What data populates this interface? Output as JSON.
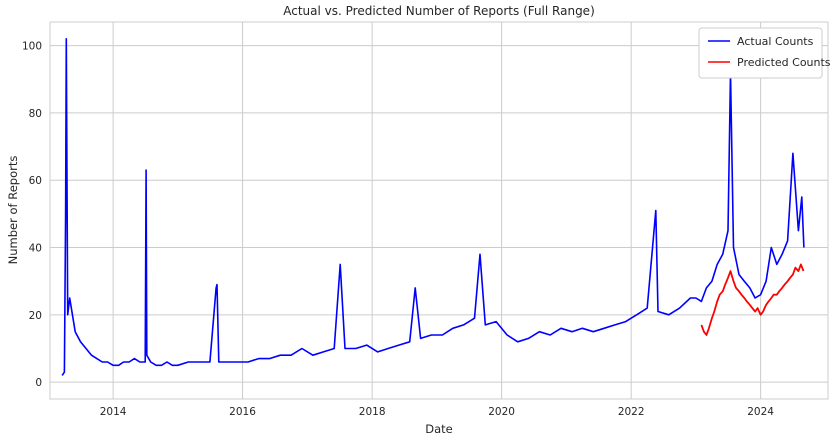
{
  "chart_data": {
    "type": "line",
    "title": "Actual vs. Predicted Number of Reports (Full Range)",
    "xlabel": "Date",
    "ylabel": "Number of Reports",
    "x_range": [
      "2013-01-10",
      "2025-01-15"
    ],
    "ylim": [
      -5,
      107
    ],
    "x_ticks": [
      {
        "label": "2014",
        "date": "2014-01-01"
      },
      {
        "label": "2016",
        "date": "2016-01-01"
      },
      {
        "label": "2018",
        "date": "2018-01-01"
      },
      {
        "label": "2020",
        "date": "2020-01-01"
      },
      {
        "label": "2022",
        "date": "2022-01-01"
      },
      {
        "label": "2024",
        "date": "2024-01-01"
      }
    ],
    "y_ticks": [
      0,
      20,
      40,
      60,
      80,
      100
    ],
    "grid": true,
    "legend_position": "top-right",
    "series": [
      {
        "name": "Actual Counts",
        "color": "#0000ff",
        "dates": [
          "2013-03-20",
          "2013-04-01",
          "2013-04-08",
          "2013-04-12",
          "2013-04-16",
          "2013-04-20",
          "2013-05-01",
          "2013-06-01",
          "2013-07-01",
          "2013-08-01",
          "2013-09-01",
          "2013-10-01",
          "2013-11-01",
          "2013-12-01",
          "2014-01-01",
          "2014-02-01",
          "2014-03-01",
          "2014-04-01",
          "2014-05-01",
          "2014-06-01",
          "2014-07-01",
          "2014-07-06",
          "2014-07-10",
          "2014-08-01",
          "2014-09-01",
          "2014-10-01",
          "2014-11-01",
          "2014-12-01",
          "2015-01-01",
          "2015-03-01",
          "2015-05-01",
          "2015-07-01",
          "2015-08-05",
          "2015-08-10",
          "2015-08-20",
          "2015-10-01",
          "2015-12-01",
          "2016-02-01",
          "2016-04-01",
          "2016-06-01",
          "2016-08-01",
          "2016-10-01",
          "2016-12-01",
          "2017-02-01",
          "2017-04-01",
          "2017-06-01",
          "2017-07-05",
          "2017-08-01",
          "2017-10-01",
          "2017-12-01",
          "2018-02-01",
          "2018-04-01",
          "2018-06-01",
          "2018-08-01",
          "2018-09-01",
          "2018-10-01",
          "2018-12-01",
          "2019-02-01",
          "2019-04-01",
          "2019-06-01",
          "2019-08-01",
          "2019-09-01",
          "2019-10-01",
          "2019-12-01",
          "2020-02-01",
          "2020-04-01",
          "2020-06-01",
          "2020-08-01",
          "2020-10-01",
          "2020-12-01",
          "2021-02-01",
          "2021-04-01",
          "2021-06-01",
          "2021-08-01",
          "2021-10-01",
          "2021-12-01",
          "2022-02-01",
          "2022-04-01",
          "2022-05-20",
          "2022-06-01",
          "2022-08-01",
          "2022-10-01",
          "2022-12-01",
          "2023-01-01",
          "2023-02-01",
          "2023-03-01",
          "2023-04-01",
          "2023-05-01",
          "2023-06-01",
          "2023-07-01",
          "2023-07-15",
          "2023-08-01",
          "2023-09-01",
          "2023-10-01",
          "2023-11-01",
          "2023-12-01",
          "2024-01-01",
          "2024-02-01",
          "2024-03-01",
          "2024-04-01",
          "2024-05-01",
          "2024-06-01",
          "2024-07-01",
          "2024-08-01",
          "2024-08-20",
          "2024-09-01"
        ],
        "values": [
          2,
          3,
          50,
          102,
          60,
          20,
          25,
          15,
          12,
          10,
          8,
          7,
          6,
          6,
          5,
          5,
          6,
          6,
          7,
          6,
          6,
          63,
          8,
          6,
          5,
          5,
          6,
          5,
          5,
          6,
          6,
          6,
          28,
          29,
          6,
          6,
          6,
          6,
          7,
          7,
          8,
          8,
          10,
          8,
          9,
          10,
          35,
          10,
          10,
          11,
          9,
          10,
          11,
          12,
          28,
          13,
          14,
          14,
          16,
          17,
          19,
          38,
          17,
          18,
          14,
          12,
          13,
          15,
          14,
          16,
          15,
          16,
          15,
          16,
          17,
          18,
          20,
          22,
          51,
          21,
          20,
          22,
          25,
          25,
          24,
          28,
          30,
          35,
          38,
          45,
          92,
          40,
          32,
          30,
          28,
          25,
          26,
          30,
          40,
          35,
          38,
          42,
          68,
          45,
          55,
          40
        ]
      },
      {
        "name": "Predicted Counts",
        "color": "#ff0000",
        "dates": [
          "2023-02-01",
          "2023-02-15",
          "2023-03-01",
          "2023-03-15",
          "2023-04-01",
          "2023-04-15",
          "2023-05-01",
          "2023-05-15",
          "2023-06-01",
          "2023-06-15",
          "2023-07-01",
          "2023-07-15",
          "2023-08-01",
          "2023-08-15",
          "2023-09-01",
          "2023-09-15",
          "2023-10-01",
          "2023-10-15",
          "2023-11-01",
          "2023-11-15",
          "2023-12-01",
          "2023-12-15",
          "2024-01-01",
          "2024-01-15",
          "2024-02-01",
          "2024-02-15",
          "2024-03-01",
          "2024-03-15",
          "2024-04-01",
          "2024-04-15",
          "2024-05-01",
          "2024-05-15",
          "2024-06-01",
          "2024-06-15",
          "2024-07-01",
          "2024-07-15",
          "2024-08-01",
          "2024-08-15",
          "2024-08-30"
        ],
        "values": [
          17,
          15,
          14,
          16,
          19,
          21,
          24,
          26,
          27,
          29,
          31,
          33,
          30,
          28,
          27,
          26,
          25,
          24,
          23,
          22,
          21,
          22,
          20,
          21,
          23,
          24,
          25,
          26,
          26,
          27,
          28,
          29,
          30,
          31,
          32,
          34,
          33,
          35,
          33
        ]
      }
    ]
  }
}
